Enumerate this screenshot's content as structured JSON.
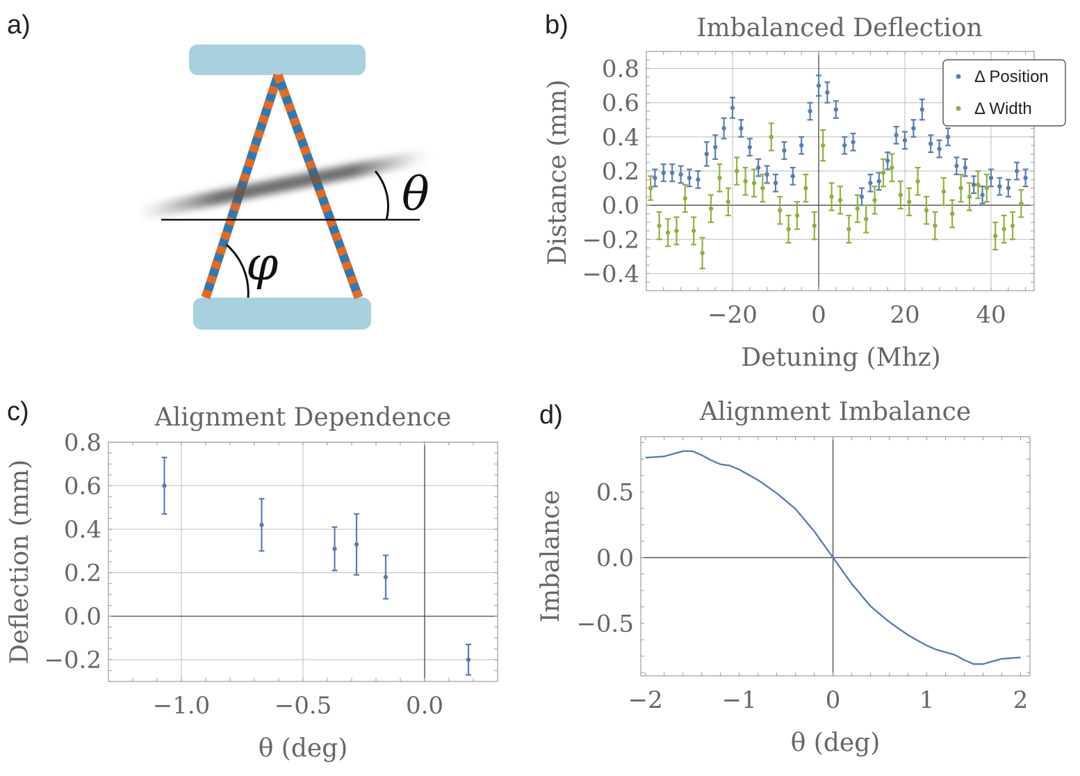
{
  "panel_labels": {
    "a": "a)",
    "b": "b)",
    "c": "c)",
    "d": "d)"
  },
  "diagram": {
    "theta_symbol": "θ",
    "phi_symbol": "φ",
    "colors": {
      "mirror": "#a8d1df",
      "beam_orange": "#e8691d",
      "beam_blue": "#2a7ab8",
      "shadow": "#555555"
    }
  },
  "colors": {
    "blue": "#5a7cb4",
    "green": "#8fb03a",
    "grid": "#c8c8c8",
    "axis_line": "#333333",
    "frame": "#999999",
    "text": "#666666"
  },
  "chart_data": [
    {
      "id": "b",
      "type": "scatter",
      "title": "Imbalanced Deflection",
      "xlabel": "Detuning (Mhz)",
      "ylabel": "Distance (mm)",
      "xlim": [
        -40,
        50
      ],
      "ylim": [
        -0.5,
        0.9
      ],
      "xticks": [
        -20,
        0,
        20,
        40
      ],
      "xtick_labels": [
        "−20",
        "0",
        "20",
        "40"
      ],
      "yticks": [
        -0.4,
        -0.2,
        0,
        0.2,
        0.4,
        0.6,
        0.8
      ],
      "ytick_labels": [
        "−0.4",
        "−0.2",
        "0.0",
        "0.2",
        "0.4",
        "0.6",
        "0.8"
      ],
      "grid": true,
      "legend_position": "top-right",
      "series": [
        {
          "name": "Δ Position",
          "color": "#5a7cb4",
          "x": [
            -38,
            -36,
            -34,
            -32,
            -30,
            -28,
            -26,
            -24,
            -22,
            -20,
            -18,
            -16,
            -14,
            -12,
            -10,
            -8,
            -6,
            -4,
            -2,
            0,
            2,
            4,
            6,
            8,
            10,
            12,
            14,
            16,
            18,
            20,
            22,
            24,
            26,
            28,
            30,
            32,
            34,
            36,
            38,
            40,
            42,
            44,
            46,
            48
          ],
          "y": [
            0.16,
            0.19,
            0.19,
            0.18,
            0.16,
            0.15,
            0.3,
            0.34,
            0.45,
            0.57,
            0.45,
            0.34,
            0.22,
            0.18,
            0.13,
            0.32,
            0.17,
            0.35,
            0.55,
            0.7,
            0.66,
            0.56,
            0.35,
            0.37,
            0.05,
            0.13,
            0.14,
            0.26,
            0.41,
            0.38,
            0.45,
            0.56,
            0.36,
            0.33,
            0.4,
            0.23,
            0.22,
            0.12,
            0.06,
            0.16,
            0.11,
            0.1,
            0.2,
            0.16
          ],
          "err": [
            0.05,
            0.05,
            0.05,
            0.05,
            0.05,
            0.05,
            0.07,
            0.07,
            0.06,
            0.06,
            0.05,
            0.05,
            0.05,
            0.05,
            0.05,
            0.05,
            0.05,
            0.05,
            0.05,
            0.06,
            0.06,
            0.05,
            0.05,
            0.05,
            0.05,
            0.05,
            0.05,
            0.05,
            0.05,
            0.05,
            0.05,
            0.06,
            0.05,
            0.05,
            0.05,
            0.05,
            0.05,
            0.05,
            0.05,
            0.05,
            0.05,
            0.05,
            0.05,
            0.05
          ]
        },
        {
          "name": "Δ Width",
          "color": "#8fb03a",
          "x": [
            -39,
            -37,
            -35,
            -33,
            -31,
            -29,
            -27,
            -25,
            -23,
            -21,
            -19,
            -17,
            -15,
            -13,
            -11,
            -9,
            -7,
            -5,
            -3,
            -1,
            1,
            3,
            5,
            7,
            9,
            11,
            13,
            15,
            17,
            19,
            21,
            23,
            25,
            27,
            29,
            31,
            33,
            35,
            37,
            39,
            41,
            43,
            45,
            47
          ],
          "y": [
            0.1,
            -0.12,
            -0.16,
            -0.15,
            0.04,
            -0.15,
            -0.28,
            -0.02,
            0.16,
            0.02,
            0.2,
            0.14,
            0.13,
            0.1,
            0.4,
            -0.03,
            -0.14,
            -0.06,
            0.1,
            -0.12,
            0.35,
            0.05,
            0.03,
            -0.14,
            -0.02,
            -0.08,
            0.03,
            0.19,
            0.22,
            0.06,
            0.02,
            0.14,
            -0.03,
            -0.12,
            0.08,
            -0.05,
            0.1,
            0.05,
            0.12,
            0.1,
            -0.18,
            -0.14,
            -0.12,
            0.01
          ],
          "err": [
            0.07,
            0.08,
            0.08,
            0.08,
            0.08,
            0.08,
            0.09,
            0.08,
            0.08,
            0.08,
            0.08,
            0.08,
            0.08,
            0.08,
            0.08,
            0.08,
            0.08,
            0.08,
            0.08,
            0.08,
            0.09,
            0.08,
            0.08,
            0.08,
            0.08,
            0.08,
            0.08,
            0.08,
            0.08,
            0.08,
            0.08,
            0.08,
            0.08,
            0.08,
            0.08,
            0.08,
            0.08,
            0.08,
            0.08,
            0.08,
            0.08,
            0.08,
            0.08,
            0.08
          ]
        }
      ]
    },
    {
      "id": "c",
      "type": "scatter",
      "title": "Alignment Dependence",
      "xlabel": "θ (deg)",
      "ylabel": "Deflection (mm)",
      "xlim": [
        -1.3,
        0.3
      ],
      "ylim": [
        -0.3,
        0.8
      ],
      "xticks": [
        -1.0,
        -0.5,
        0.0
      ],
      "xtick_labels": [
        "−1.0",
        "−0.5",
        "0.0"
      ],
      "yticks": [
        -0.2,
        0,
        0.2,
        0.4,
        0.6,
        0.8
      ],
      "ytick_labels": [
        "−0.2",
        "0.0",
        "0.2",
        "0.4",
        "0.6",
        "0.8"
      ],
      "grid": true,
      "series": [
        {
          "name": "Deflection",
          "color": "#5a7cb4",
          "x": [
            -1.07,
            -0.67,
            -0.37,
            -0.28,
            -0.16,
            0.18
          ],
          "y": [
            0.6,
            0.42,
            0.31,
            0.33,
            0.18,
            -0.2
          ],
          "err": [
            0.13,
            0.12,
            0.1,
            0.14,
            0.1,
            0.07
          ]
        }
      ]
    },
    {
      "id": "d",
      "type": "line",
      "title": "Alignment Imbalance",
      "xlabel": "θ (deg)",
      "ylabel": "Imbalance",
      "xlim": [
        -2.05,
        2.1
      ],
      "ylim": [
        -0.9,
        0.92
      ],
      "xticks": [
        -2,
        -1,
        0,
        1,
        2
      ],
      "xtick_labels": [
        "−2",
        "−1",
        "0",
        "1",
        "2"
      ],
      "yticks": [
        -0.5,
        0,
        0.5
      ],
      "ytick_labels": [
        "−0.5",
        "0.0",
        "0.5"
      ],
      "grid": false,
      "series": [
        {
          "name": "Imbalance",
          "color": "#5a7cb4",
          "x": [
            -2.0,
            -1.8,
            -1.7,
            -1.6,
            -1.5,
            -1.4,
            -1.3,
            -1.2,
            -1.1,
            -1.0,
            -0.8,
            -0.6,
            -0.4,
            -0.2,
            0.0,
            0.2,
            0.4,
            0.6,
            0.8,
            1.0,
            1.1,
            1.2,
            1.3,
            1.4,
            1.5,
            1.6,
            1.7,
            1.8,
            2.0
          ],
          "y": [
            0.76,
            0.77,
            0.79,
            0.81,
            0.81,
            0.78,
            0.74,
            0.71,
            0.7,
            0.67,
            0.59,
            0.49,
            0.37,
            0.2,
            0.0,
            -0.2,
            -0.37,
            -0.49,
            -0.59,
            -0.67,
            -0.7,
            -0.72,
            -0.74,
            -0.78,
            -0.81,
            -0.81,
            -0.79,
            -0.77,
            -0.76
          ]
        }
      ]
    }
  ]
}
